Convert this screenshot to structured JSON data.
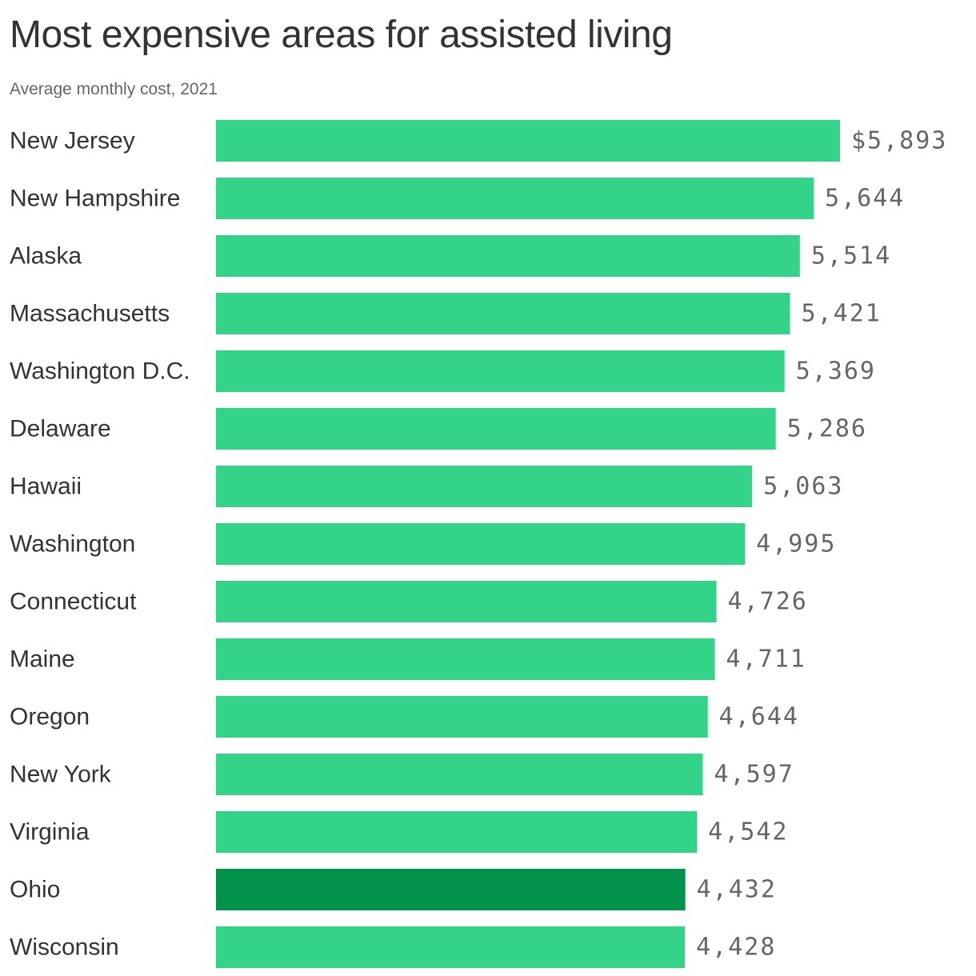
{
  "title": "Most expensive areas for assisted living",
  "subtitle": "Average monthly cost, 2021",
  "colors": {
    "bar": "#33d48a",
    "highlight": "#00924a",
    "label_text": "#333333",
    "value_text": "#666666"
  },
  "chart_data": {
    "type": "bar",
    "orientation": "horizontal",
    "title": "Most expensive areas for assisted living",
    "subtitle": "Average monthly cost, 2021",
    "categories": [
      "New Jersey",
      "New Hampshire",
      "Alaska",
      "Massachusetts",
      "Washington D.C.",
      "Delaware",
      "Hawaii",
      "Washington",
      "Connecticut",
      "Maine",
      "Oregon",
      "New York",
      "Virginia",
      "Ohio",
      "Wisconsin"
    ],
    "values": [
      5893,
      5644,
      5514,
      5421,
      5369,
      5286,
      5063,
      4995,
      4726,
      4711,
      4644,
      4597,
      4542,
      4432,
      4428
    ],
    "value_labels": [
      "$5,893",
      "5,644",
      "5,514",
      "5,421",
      "5,369",
      "5,286",
      "5,063",
      "4,995",
      "4,726",
      "4,711",
      "4,644",
      "4,597",
      "4,542",
      "4,432",
      "4,428"
    ],
    "highlighted": [
      "Ohio"
    ],
    "xlim": [
      0,
      5893
    ],
    "xlabel": "",
    "ylabel": "",
    "grid": false,
    "legend": false
  }
}
